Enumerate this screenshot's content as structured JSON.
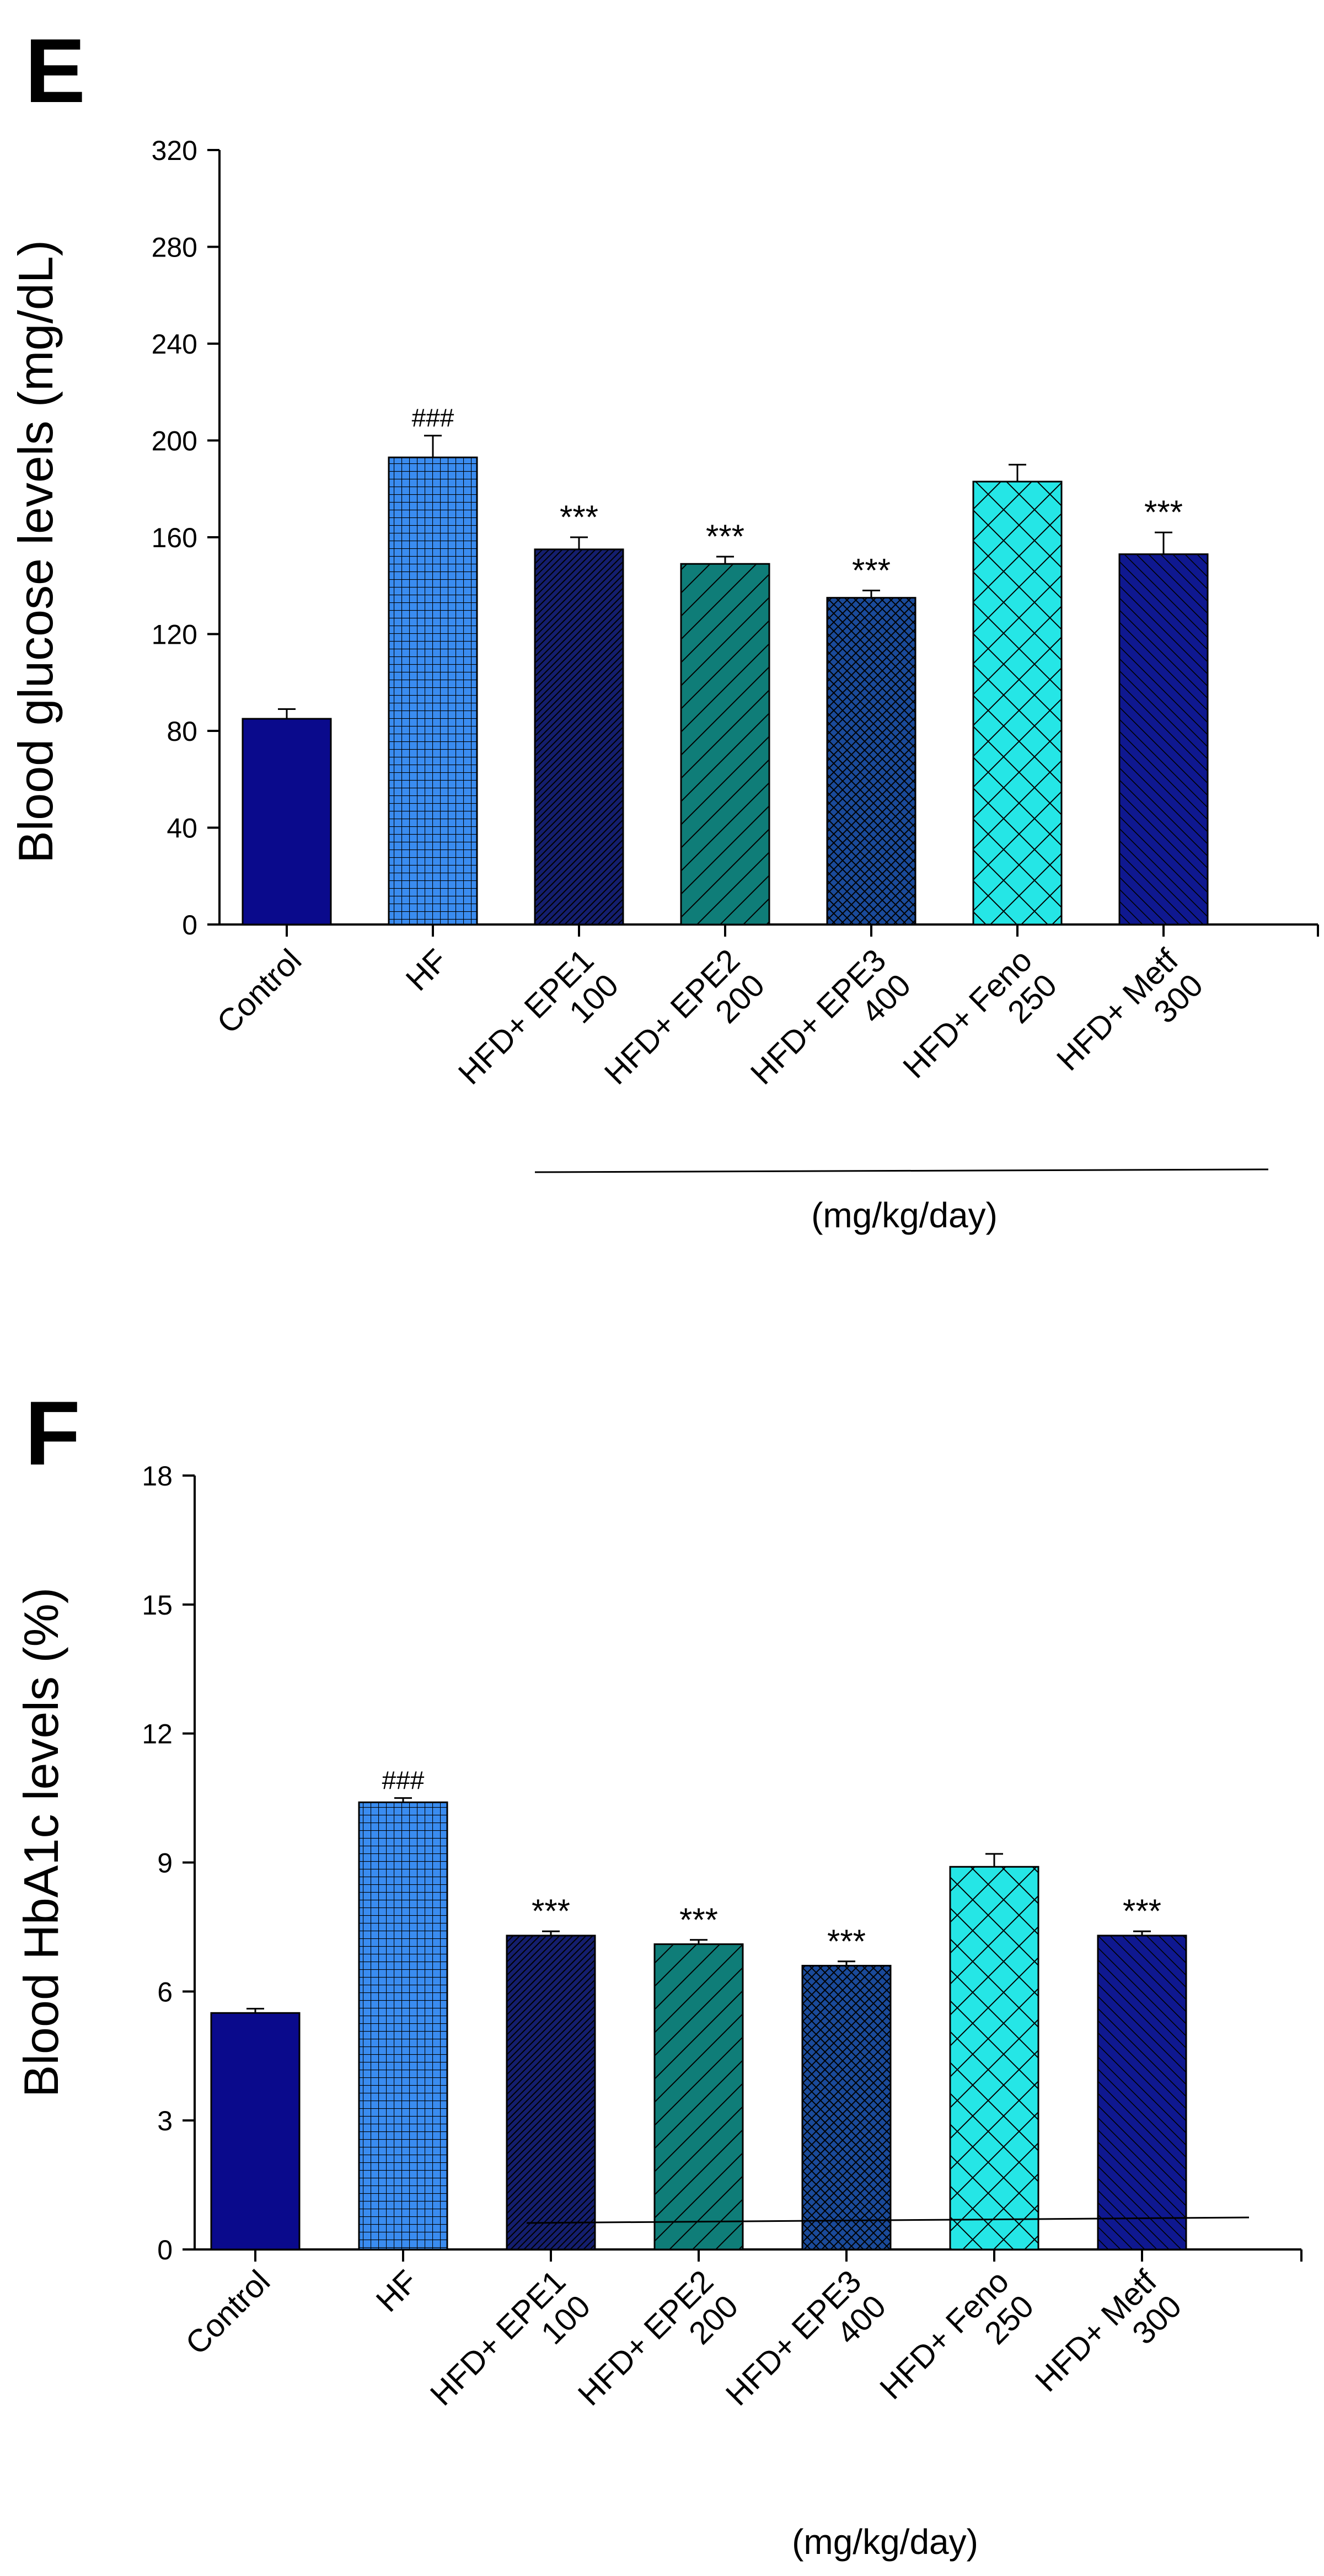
{
  "chart_data": [
    {
      "panel_label": "E",
      "type": "bar",
      "ylabel": "Blood glucose levels (mg/dL)",
      "ylim": [
        0,
        320
      ],
      "yticks": [
        "0",
        "40",
        "80",
        "120",
        "160",
        "200",
        "240",
        "280",
        "320"
      ],
      "categories": [
        [
          "Control"
        ],
        [
          "HF"
        ],
        [
          "HFD+ EPE1",
          "100"
        ],
        [
          "HFD+ EPE2",
          "200"
        ],
        [
          "HFD+ EPE3",
          "400"
        ],
        [
          "HFD+ Feno",
          "250"
        ],
        [
          "HFD+ Metf",
          "300"
        ]
      ],
      "values": [
        85,
        193,
        155,
        149,
        135,
        183,
        153
      ],
      "errors": [
        4,
        9,
        5,
        3,
        3,
        7,
        9
      ],
      "annotations": [
        "",
        "###",
        "***",
        "***",
        "***",
        "",
        "***"
      ],
      "group_label": "(mg/kg/day)",
      "grid": false
    },
    {
      "panel_label": "F",
      "type": "bar",
      "ylabel": "Blood HbA1c levels (%)",
      "ylim": [
        0,
        18
      ],
      "yticks": [
        "0",
        "3",
        "6",
        "9",
        "12",
        "15",
        "18"
      ],
      "categories": [
        [
          "Control"
        ],
        [
          "HF"
        ],
        [
          "HFD+ EPE1",
          "100"
        ],
        [
          "HFD+ EPE2",
          "200"
        ],
        [
          "HFD+ EPE3",
          "400"
        ],
        [
          "HFD+ Feno",
          "250"
        ],
        [
          "HFD+ Metf",
          "300"
        ]
      ],
      "values": [
        5.5,
        10.4,
        7.3,
        7.1,
        6.6,
        8.9,
        7.3
      ],
      "errors": [
        0.1,
        0.1,
        0.1,
        0.1,
        0.1,
        0.3,
        0.1
      ],
      "annotations": [
        "",
        "###",
        "***",
        "***",
        "***",
        "",
        "***"
      ],
      "group_label": "(mg/kg/day)",
      "grid": false
    }
  ],
  "bar_styles": [
    {
      "fill": "#0a0a8c",
      "pattern": "solid"
    },
    {
      "fill": "#3a8cf0",
      "pattern": "grid"
    },
    {
      "fill": "#141e6e",
      "pattern": "dense-diag"
    },
    {
      "fill": "#0f7d78",
      "pattern": "wide-diag"
    },
    {
      "fill": "#1a4a9a",
      "pattern": "dense-cross"
    },
    {
      "fill": "#25e6e6",
      "pattern": "wide-cross"
    },
    {
      "fill": "#0f1890",
      "pattern": "diag-light"
    }
  ]
}
